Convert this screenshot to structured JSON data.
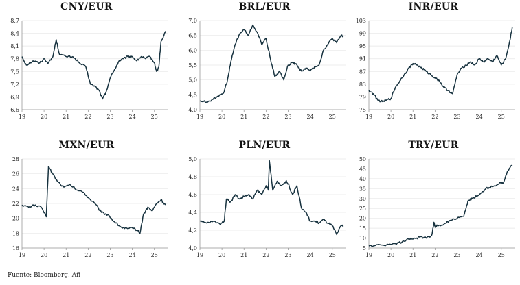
{
  "source": "Fuente: Bloomberg. Afi",
  "colors": {
    "line": "#17323f",
    "grid": "#e6e6e6",
    "axis": "#999999"
  },
  "chart_data": [
    {
      "type": "line",
      "title": "CNY/EUR",
      "xlim": [
        2019.0,
        2025.6
      ],
      "ylim": [
        6.6,
        8.7
      ],
      "x_ticks": [
        19,
        20,
        21,
        22,
        23,
        24,
        25
      ],
      "y_ticks": [
        6.6,
        6.9,
        7.2,
        7.5,
        7.8,
        8.1,
        8.4,
        8.7
      ],
      "y_decimals": 1,
      "series": [
        {
          "x": [
            2019.0,
            2019.2,
            2019.5,
            2019.8,
            2020.0,
            2020.2,
            2020.4,
            2020.55,
            2020.7,
            2021.0,
            2021.3,
            2021.6,
            2021.9,
            2022.1,
            2022.3,
            2022.5,
            2022.65,
            2022.8,
            2023.0,
            2023.2,
            2023.4,
            2023.6,
            2023.8,
            2024.0,
            2024.2,
            2024.4,
            2024.6,
            2024.8,
            2025.0,
            2025.1,
            2025.2,
            2025.3,
            2025.4,
            2025.5
          ],
          "y": [
            7.85,
            7.65,
            7.75,
            7.7,
            7.8,
            7.7,
            7.85,
            8.25,
            7.9,
            7.85,
            7.85,
            7.7,
            7.6,
            7.2,
            7.15,
            7.05,
            6.85,
            7.0,
            7.35,
            7.55,
            7.75,
            7.8,
            7.85,
            7.85,
            7.75,
            7.85,
            7.8,
            7.85,
            7.7,
            7.5,
            7.6,
            8.2,
            8.3,
            8.45
          ]
        }
      ]
    },
    {
      "type": "line",
      "title": "BRL/EUR",
      "xlim": [
        2019.0,
        2025.6
      ],
      "ylim": [
        4.0,
        7.0
      ],
      "x_ticks": [
        19,
        20,
        21,
        22,
        23,
        24,
        25
      ],
      "y_ticks": [
        4.0,
        4.5,
        5.0,
        5.5,
        6.0,
        6.5,
        7.0
      ],
      "y_decimals": 1,
      "series": [
        {
          "x": [
            2019.0,
            2019.3,
            2019.6,
            2019.9,
            2020.1,
            2020.25,
            2020.4,
            2020.6,
            2020.8,
            2021.0,
            2021.2,
            2021.4,
            2021.6,
            2021.8,
            2022.0,
            2022.2,
            2022.4,
            2022.6,
            2022.8,
            2023.0,
            2023.2,
            2023.4,
            2023.6,
            2023.8,
            2024.0,
            2024.2,
            2024.4,
            2024.6,
            2024.8,
            2025.0,
            2025.2,
            2025.4,
            2025.5
          ],
          "y": [
            4.3,
            4.25,
            4.35,
            4.5,
            4.6,
            5.0,
            5.6,
            6.2,
            6.55,
            6.7,
            6.5,
            6.85,
            6.6,
            6.2,
            6.4,
            5.7,
            5.1,
            5.3,
            5.0,
            5.5,
            5.6,
            5.5,
            5.3,
            5.4,
            5.3,
            5.45,
            5.5,
            6.0,
            6.2,
            6.4,
            6.25,
            6.5,
            6.45
          ]
        }
      ]
    },
    {
      "type": "line",
      "title": "INR/EUR",
      "xlim": [
        2019.0,
        2025.6
      ],
      "ylim": [
        75,
        103
      ],
      "x_ticks": [
        19,
        20,
        21,
        22,
        23,
        24,
        25
      ],
      "y_ticks": [
        75,
        79,
        83,
        87,
        91,
        95,
        99,
        103
      ],
      "y_decimals": 0,
      "series": [
        {
          "x": [
            2019.0,
            2019.2,
            2019.4,
            2019.6,
            2019.8,
            2020.0,
            2020.2,
            2020.4,
            2020.6,
            2020.8,
            2021.0,
            2021.2,
            2021.4,
            2021.6,
            2021.8,
            2022.0,
            2022.2,
            2022.4,
            2022.6,
            2022.8,
            2023.0,
            2023.2,
            2023.4,
            2023.6,
            2023.8,
            2024.0,
            2024.2,
            2024.4,
            2024.6,
            2024.8,
            2025.0,
            2025.2,
            2025.4,
            2025.5
          ],
          "y": [
            81,
            80,
            78,
            77.5,
            78,
            78.5,
            82,
            84,
            86,
            88,
            89.5,
            89,
            88,
            87,
            86,
            85,
            84,
            82,
            81,
            80,
            86,
            88,
            89,
            90,
            89,
            91,
            90,
            91,
            90,
            92,
            89,
            91,
            97,
            101
          ]
        }
      ]
    },
    {
      "type": "line",
      "title": "MXN/EUR",
      "xlim": [
        2019.0,
        2025.6
      ],
      "ylim": [
        16,
        28
      ],
      "x_ticks": [
        19,
        20,
        21,
        22,
        23,
        24,
        25
      ],
      "y_ticks": [
        16,
        18,
        20,
        22,
        24,
        26,
        28
      ],
      "y_decimals": 0,
      "series": [
        {
          "x": [
            2019.0,
            2019.3,
            2019.6,
            2019.9,
            2020.1,
            2020.2,
            2020.35,
            2020.6,
            2020.9,
            2021.2,
            2021.5,
            2021.8,
            2022.0,
            2022.3,
            2022.6,
            2022.9,
            2023.2,
            2023.5,
            2023.8,
            2024.0,
            2024.2,
            2024.35,
            2024.5,
            2024.7,
            2024.9,
            2025.1,
            2025.3,
            2025.5
          ],
          "y": [
            21.8,
            21.5,
            21.8,
            21.4,
            20.2,
            27.0,
            26.2,
            25.0,
            24.2,
            24.5,
            23.8,
            23.5,
            22.8,
            22.0,
            20.8,
            20.5,
            19.5,
            18.8,
            18.6,
            18.7,
            18.4,
            18.0,
            20.5,
            21.5,
            21.0,
            22.0,
            22.5,
            21.8
          ]
        }
      ]
    },
    {
      "type": "line",
      "title": "PLN/EUR",
      "xlim": [
        2019.0,
        2025.6
      ],
      "ylim": [
        4.0,
        5.0
      ],
      "x_ticks": [
        19,
        20,
        21,
        22,
        23,
        24,
        25
      ],
      "y_ticks": [
        4.0,
        4.2,
        4.4,
        4.6,
        4.8,
        5.0
      ],
      "y_decimals": 1,
      "series": [
        {
          "x": [
            2019.0,
            2019.3,
            2019.6,
            2019.9,
            2020.1,
            2020.2,
            2020.4,
            2020.6,
            2020.8,
            2021.0,
            2021.2,
            2021.4,
            2021.6,
            2021.8,
            2022.0,
            2022.1,
            2022.15,
            2022.3,
            2022.5,
            2022.7,
            2022.9,
            2023.0,
            2023.2,
            2023.4,
            2023.6,
            2023.8,
            2024.0,
            2024.2,
            2024.4,
            2024.6,
            2024.8,
            2025.0,
            2025.2,
            2025.4,
            2025.5
          ],
          "y": [
            4.3,
            4.28,
            4.3,
            4.27,
            4.3,
            4.55,
            4.52,
            4.6,
            4.55,
            4.58,
            4.6,
            4.55,
            4.65,
            4.6,
            4.7,
            4.65,
            4.98,
            4.65,
            4.75,
            4.7,
            4.75,
            4.72,
            4.6,
            4.7,
            4.45,
            4.4,
            4.3,
            4.3,
            4.28,
            4.32,
            4.28,
            4.25,
            4.15,
            4.25,
            4.25
          ]
        }
      ]
    },
    {
      "type": "line",
      "title": "TRY/EUR",
      "xlim": [
        2019.0,
        2025.6
      ],
      "ylim": [
        5,
        50
      ],
      "x_ticks": [
        19,
        20,
        21,
        22,
        23,
        24,
        25
      ],
      "y_ticks": [
        5,
        10,
        15,
        20,
        25,
        30,
        35,
        40,
        45,
        50
      ],
      "y_decimals": 0,
      "series": [
        {
          "x": [
            2019.0,
            2019.3,
            2019.6,
            2019.9,
            2020.2,
            2020.5,
            2020.8,
            2021.0,
            2021.3,
            2021.6,
            2021.85,
            2021.95,
            2022.0,
            2022.1,
            2022.4,
            2022.7,
            2023.0,
            2023.3,
            2023.4,
            2023.5,
            2023.7,
            2024.0,
            2024.3,
            2024.6,
            2024.9,
            2025.1,
            2025.3,
            2025.5
          ],
          "y": [
            6.0,
            6.3,
            6.5,
            6.8,
            7.2,
            8.0,
            9.5,
            9.5,
            10.5,
            10.0,
            11.5,
            18.0,
            15.5,
            16.5,
            17.0,
            19.0,
            20.0,
            21.0,
            25.0,
            29.0,
            30.0,
            32.0,
            35.0,
            36.0,
            37.5,
            38.0,
            44.0,
            47.0
          ]
        }
      ]
    }
  ]
}
